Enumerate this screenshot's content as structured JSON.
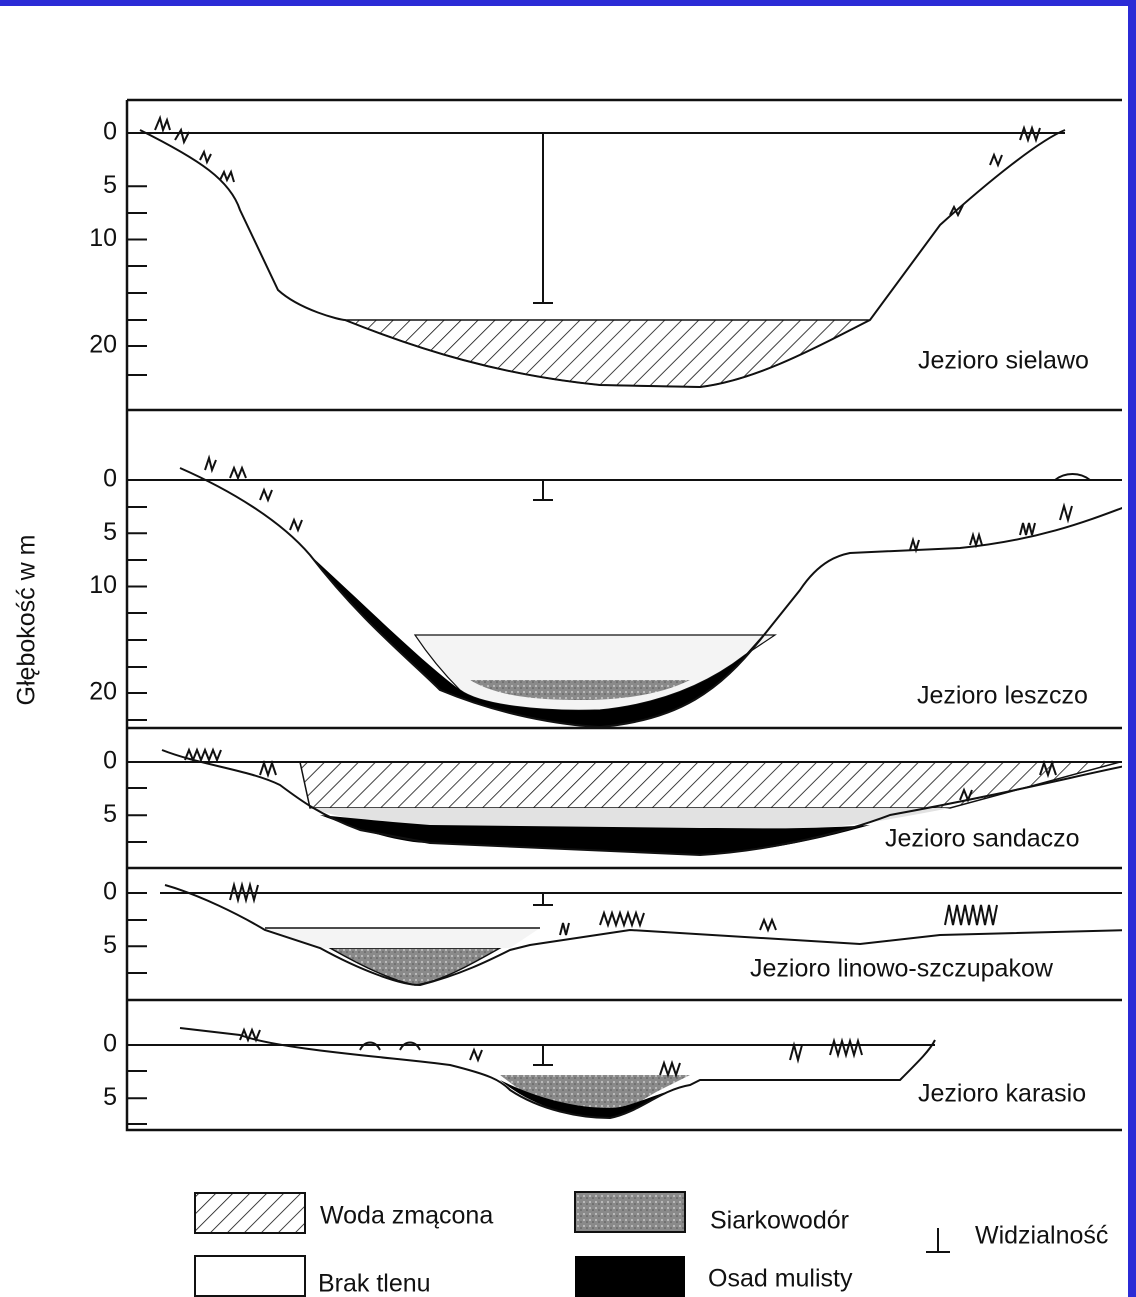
{
  "axis_label": "Głębokość w m",
  "panels": [
    {
      "label": "Jezioro sielawo",
      "ticks": [
        0,
        5,
        10,
        20
      ]
    },
    {
      "label": "Jezioro leszczo",
      "ticks": [
        0,
        5,
        10,
        20
      ]
    },
    {
      "label": "Jezioro sandaczo",
      "ticks": [
        0,
        5
      ]
    },
    {
      "label": "Jezioro linowo-szczupakow",
      "ticks": [
        0,
        5
      ]
    },
    {
      "label": "Jezioro karasio",
      "ticks": [
        0,
        5
      ]
    }
  ],
  "legend": {
    "turbid_water": "Woda zmącona",
    "hydrogen_sulfide": "Siarkowodór",
    "visibility": "Widzialność",
    "no_oxygen": "Brak tlenu",
    "mud_sediment": "Osad mulisty"
  }
}
